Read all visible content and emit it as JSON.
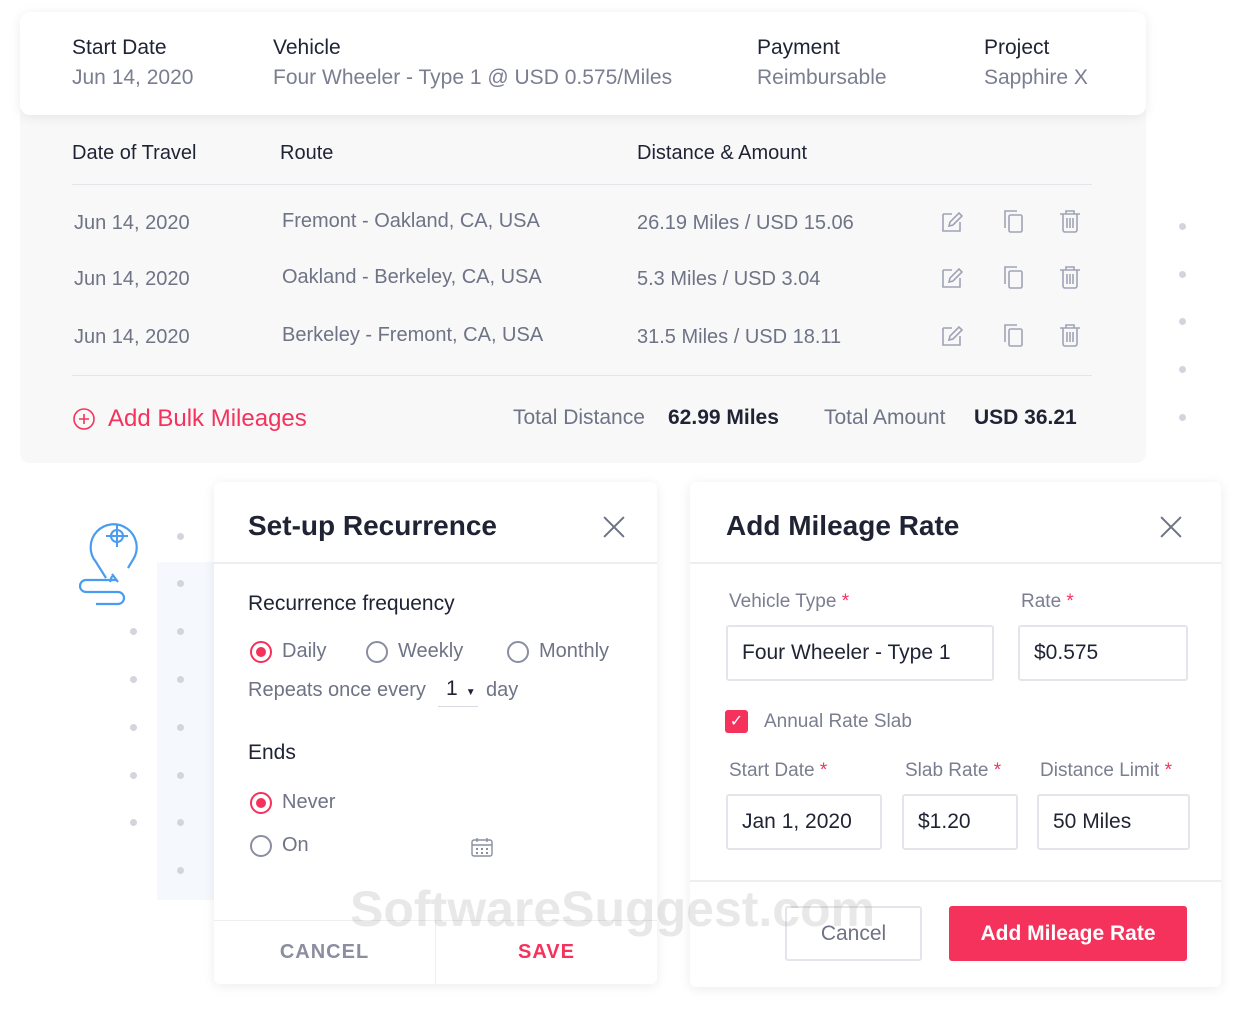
{
  "summary": {
    "start_date_label": "Start Date",
    "start_date": "Jun 14, 2020",
    "vehicle_label": "Vehicle",
    "vehicle": "Four Wheeler - Type 1 @ USD 0.575/Miles",
    "payment_label": "Payment",
    "payment": "Reimbursable",
    "project_label": "Project",
    "project": "Sapphire X"
  },
  "table": {
    "headers": [
      "Date of Travel",
      "Route",
      "Distance & Amount"
    ],
    "rows": [
      {
        "date": "Jun 14, 2020",
        "route": "Fremont - Oakland, CA, USA",
        "amount": "26.19 Miles / USD 15.06"
      },
      {
        "date": "Jun 14, 2020",
        "route": "Oakland - Berkeley, CA, USA",
        "amount": "5.3 Miles / USD 3.04"
      },
      {
        "date": "Jun 14, 2020",
        "route": "Berkeley - Fremont, CA, USA",
        "amount": "31.5 Miles / USD 18.11"
      }
    ],
    "add_bulk": "Add Bulk Mileages",
    "total_distance_label": "Total Distance",
    "total_distance": "62.99 Miles",
    "total_amount_label": "Total Amount",
    "total_amount": "USD 36.21"
  },
  "recurrence": {
    "title": "Set-up Recurrence",
    "freq_label": "Recurrence frequency",
    "options": [
      "Daily",
      "Weekly",
      "Monthly"
    ],
    "selected": "Daily",
    "repeats_label": "Repeats once every",
    "repeats_value": "1",
    "repeats_unit": "day",
    "ends_label": "Ends",
    "ends_options": [
      "Never",
      "On"
    ],
    "ends_selected": "Never",
    "cancel": "CANCEL",
    "save": "SAVE"
  },
  "mileage": {
    "title": "Add Mileage Rate",
    "vehicle_type_label": "Vehicle Type",
    "vehicle_type": "Four Wheeler -  Type 1",
    "rate_label": "Rate",
    "rate": "$0.575",
    "slab_label": "Annual Rate Slab",
    "slab_checked": true,
    "start_date_label": "Start Date",
    "start_date": "Jan 1, 2020",
    "slab_rate_label": "Slab Rate",
    "slab_rate": "$1.20",
    "distance_limit_label": "Distance Limit",
    "distance_limit": "50 Miles",
    "cancel": "Cancel",
    "submit": "Add Mileage Rate",
    "required_mark": "*"
  },
  "watermark": "SoftwareSuggest.com",
  "colors": {
    "accent": "#f5325c",
    "text": "#1f2333",
    "muted": "#6e7385",
    "map_icon": "#4a9cf0"
  }
}
